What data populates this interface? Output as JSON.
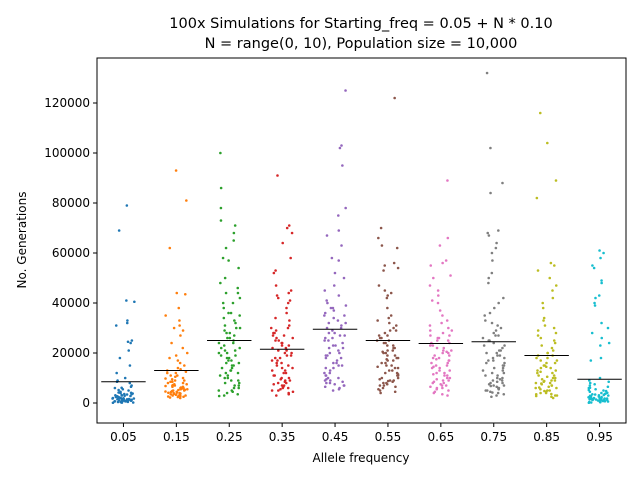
{
  "chart_data": {
    "type": "scatter",
    "title_line1": "100x Simulations for Starting_freq = 0.05 + N * 0.10",
    "title_line2": "N = range(0, 10), Population size = 10,000",
    "xlabel": "Allele frequency",
    "ylabel": "No. Generations",
    "ylim": [
      -8000,
      138000
    ],
    "yticks": [
      0,
      20000,
      40000,
      60000,
      80000,
      100000,
      120000
    ],
    "ytick_labels": [
      "0",
      "20000",
      "40000",
      "60000",
      "80000",
      "100000",
      "120000"
    ],
    "grid": false,
    "legend": "none",
    "groups": [
      {
        "category": "0.05",
        "color": "#1f77b4",
        "mean": 8500,
        "values": [
          79000,
          69000,
          41000,
          40500,
          33000,
          32000,
          31000,
          25000,
          24500,
          24000,
          21000,
          18000,
          15000,
          12000,
          10000,
          9000,
          8500,
          8000,
          7000,
          6500,
          6000,
          5500,
          5000,
          4500,
          4200,
          4000,
          3800,
          3500,
          3200,
          3000,
          2800,
          2600,
          2400,
          2200,
          2000,
          1900,
          1800,
          1700,
          1600,
          1500,
          1400,
          1300,
          1200,
          1100,
          1000,
          900,
          800,
          700,
          650,
          600,
          550,
          500,
          450,
          400,
          350,
          300,
          250,
          200,
          150,
          100,
          2500,
          3100,
          1500,
          1800,
          2300,
          5200,
          6100,
          2700,
          1300,
          1000,
          3600,
          4100,
          900,
          1100,
          2000,
          2900,
          700,
          1600,
          3400,
          2100
        ]
      },
      {
        "category": "0.15",
        "color": "#ff7f0e",
        "mean": 13000,
        "values": [
          93000,
          81000,
          62000,
          44000,
          43500,
          38000,
          35000,
          33000,
          31000,
          30000,
          29000,
          27000,
          24000,
          22000,
          20000,
          19000,
          18000,
          17000,
          16000,
          15000,
          14000,
          13500,
          13000,
          12500,
          12000,
          11000,
          10500,
          10000,
          9500,
          9000,
          8500,
          8000,
          7500,
          7000,
          6800,
          6500,
          6200,
          6000,
          5800,
          5500,
          5200,
          5000,
          4800,
          4600,
          4400,
          4200,
          4000,
          3800,
          3600,
          3400,
          3200,
          3000,
          2800,
          2600,
          2400,
          2200,
          2000,
          9000,
          7000,
          6000,
          5000,
          4000,
          3500,
          3000,
          8000,
          11000,
          7500,
          5500,
          4500,
          2500,
          6500,
          8500,
          12000,
          3300,
          4100,
          5300,
          7200,
          9800,
          2900,
          3700
        ]
      },
      {
        "category": "0.25",
        "color": "#2ca02c",
        "mean": 25000,
        "values": [
          100000,
          86000,
          78000,
          73000,
          71000,
          68000,
          65000,
          62000,
          58000,
          57000,
          54000,
          50000,
          48000,
          46000,
          44000,
          42000,
          40000,
          38000,
          36000,
          35000,
          34000,
          33000,
          31000,
          30000,
          29000,
          28000,
          27000,
          26000,
          25000,
          24000,
          23000,
          22000,
          21000,
          20000,
          19000,
          18000,
          17000,
          16000,
          15000,
          14000,
          13000,
          12000,
          11000,
          10000,
          9000,
          8000,
          7000,
          6000,
          5000,
          4000,
          3500,
          3000,
          2800,
          20000,
          18000,
          16000,
          22000,
          24000,
          26000,
          28000,
          14000,
          12000,
          10000,
          8000,
          6000,
          30000,
          32000,
          36000,
          40000,
          44000,
          21000,
          19000,
          17000,
          15000,
          13000,
          11000,
          9000,
          7000,
          5000,
          4500
        ]
      },
      {
        "category": "0.35",
        "color": "#d62728",
        "mean": 21500,
        "values": [
          91000,
          71000,
          70000,
          68000,
          64000,
          58000,
          53000,
          52000,
          47000,
          45000,
          44000,
          43000,
          42000,
          41000,
          40000,
          38000,
          36000,
          34000,
          33000,
          31000,
          30000,
          29000,
          28000,
          27000,
          26000,
          25000,
          24000,
          23000,
          22000,
          21000,
          20000,
          19000,
          18000,
          17000,
          16000,
          15000,
          14000,
          13000,
          12000,
          11000,
          10000,
          9500,
          9000,
          8500,
          8000,
          7500,
          7000,
          6500,
          6000,
          5500,
          5000,
          4500,
          4000,
          3500,
          3000,
          25000,
          22000,
          20000,
          18000,
          16000,
          14000,
          12000,
          10000,
          8000,
          6000,
          24000,
          21000,
          19000,
          17000,
          15000,
          13000,
          11000,
          9000,
          7000,
          5000,
          30000,
          28000,
          26000,
          23000,
          27000
        ]
      },
      {
        "category": "0.45",
        "color": "#9467bd",
        "mean": 29500,
        "values": [
          125000,
          103000,
          102000,
          95000,
          78000,
          75000,
          69000,
          67000,
          63000,
          58000,
          57000,
          52000,
          50000,
          47000,
          45000,
          43000,
          41000,
          40000,
          39000,
          38000,
          37000,
          36000,
          35000,
          34000,
          33000,
          32000,
          31000,
          30000,
          29000,
          28000,
          27000,
          26000,
          25000,
          24000,
          23000,
          22000,
          21000,
          20000,
          19000,
          18000,
          17000,
          16000,
          15000,
          14000,
          13000,
          12000,
          11000,
          10000,
          9500,
          9000,
          8500,
          8000,
          7500,
          7000,
          6500,
          6000,
          5500,
          5000,
          35000,
          30000,
          25000,
          20000,
          15000,
          10000,
          32000,
          28000,
          22000,
          18000,
          12000,
          8000,
          38000,
          26000,
          16000,
          14000,
          11000,
          9000,
          7000,
          19000,
          23000,
          27000
        ]
      },
      {
        "category": "0.55",
        "color": "#8c564b",
        "mean": 25000,
        "values": [
          122000,
          70000,
          66000,
          63000,
          62000,
          56000,
          55000,
          54000,
          53000,
          47000,
          45000,
          44000,
          43000,
          42000,
          38000,
          35000,
          34000,
          33000,
          32000,
          31000,
          30000,
          29000,
          28000,
          27000,
          26000,
          25000,
          24000,
          23000,
          22000,
          21000,
          20000,
          19000,
          18000,
          17000,
          16000,
          15000,
          14000,
          13000,
          12000,
          11000,
          10000,
          9500,
          9000,
          8500,
          8000,
          7500,
          7000,
          6500,
          6000,
          5500,
          5000,
          4500,
          4000,
          25000,
          22000,
          20000,
          18000,
          16000,
          14000,
          12000,
          10000,
          8000,
          26000,
          24000,
          21000,
          19000,
          17000,
          15000,
          13000,
          11000,
          9000,
          7000,
          23000,
          27000,
          29000,
          20500,
          17500,
          14500,
          11500,
          8800
        ]
      },
      {
        "category": "0.65",
        "color": "#e377c2",
        "mean": 23800,
        "values": [
          89000,
          66000,
          63000,
          57000,
          56000,
          55000,
          51000,
          50000,
          47000,
          45000,
          43000,
          41000,
          40000,
          37000,
          35000,
          33000,
          32000,
          31000,
          30000,
          29000,
          28000,
          27000,
          26000,
          25000,
          24000,
          23000,
          22000,
          21000,
          20000,
          19000,
          18000,
          17000,
          16000,
          15000,
          14000,
          13000,
          12000,
          11000,
          10000,
          9500,
          9000,
          8500,
          8000,
          7500,
          7000,
          6500,
          6000,
          5500,
          5000,
          4500,
          4000,
          3500,
          3000,
          25000,
          22000,
          20000,
          18000,
          16000,
          14000,
          12000,
          10000,
          8000,
          6000,
          26000,
          24000,
          21000,
          19000,
          17000,
          15000,
          13000,
          11000,
          9000,
          7000,
          23000,
          27000,
          29000,
          20500,
          17500,
          14500,
          11500
        ]
      },
      {
        "category": "0.75",
        "color": "#7f7f7f",
        "mean": 24500,
        "values": [
          132000,
          102000,
          88000,
          84000,
          69000,
          68000,
          67000,
          64000,
          62000,
          60000,
          57000,
          52000,
          50000,
          48000,
          42000,
          40000,
          36000,
          33000,
          31000,
          30000,
          28000,
          27000,
          26000,
          25000,
          24000,
          23000,
          22000,
          21000,
          20000,
          19000,
          18000,
          17000,
          16000,
          15000,
          14000,
          13000,
          12000,
          11000,
          10000,
          9500,
          9000,
          8500,
          8000,
          7500,
          7000,
          6500,
          6000,
          5500,
          5000,
          4500,
          4000,
          3500,
          3000,
          2500,
          12000,
          10000,
          8000,
          6000,
          14000,
          16000,
          18000,
          20000,
          9000,
          7000,
          5000,
          11000,
          13000,
          15000,
          17000,
          19000,
          21000,
          23000,
          25000,
          27000,
          29000,
          32000,
          35000,
          38000,
          4200,
          6800
        ]
      },
      {
        "category": "0.85",
        "color": "#bcbd22",
        "mean": 19000,
        "values": [
          116000,
          104000,
          89000,
          82000,
          56000,
          55000,
          53000,
          50000,
          47000,
          45000,
          42000,
          40000,
          38000,
          34000,
          33000,
          31000,
          30000,
          29000,
          28000,
          26000,
          24000,
          22000,
          20000,
          19000,
          18000,
          17000,
          16000,
          15000,
          14000,
          13000,
          12000,
          11000,
          10000,
          9500,
          9000,
          8500,
          8000,
          7500,
          7000,
          6500,
          6000,
          5500,
          5000,
          4500,
          4000,
          3500,
          3000,
          2500,
          2000,
          15000,
          13000,
          11000,
          9000,
          7000,
          5000,
          3000,
          14000,
          12000,
          10000,
          8000,
          6000,
          4000,
          16000,
          18000,
          20000,
          17000,
          19000,
          21000,
          23000,
          25000,
          27000,
          10500,
          8800,
          6200,
          4800,
          3600,
          2800,
          12500,
          14500,
          7800
        ]
      },
      {
        "category": "0.95",
        "color": "#17becf",
        "mean": 9500,
        "values": [
          61000,
          60000,
          58000,
          55000,
          54000,
          49000,
          48000,
          43000,
          42000,
          40000,
          39000,
          32000,
          30000,
          28000,
          26000,
          24000,
          23000,
          18000,
          17000,
          10000,
          9000,
          8500,
          8000,
          7500,
          7000,
          6500,
          6000,
          5500,
          5000,
          4500,
          4000,
          3800,
          3500,
          3200,
          3000,
          2800,
          2600,
          2400,
          2200,
          2000,
          1900,
          1800,
          1700,
          1600,
          1500,
          1400,
          1300,
          1200,
          1100,
          1000,
          900,
          800,
          700,
          600,
          500,
          400,
          300,
          200,
          100,
          2500,
          3100,
          1500,
          1800,
          2300,
          5200,
          6100,
          2700,
          1300,
          1000,
          3600,
          4100,
          900,
          1100,
          2000,
          2900,
          700,
          1600,
          3400,
          2100,
          4800
        ]
      }
    ]
  }
}
